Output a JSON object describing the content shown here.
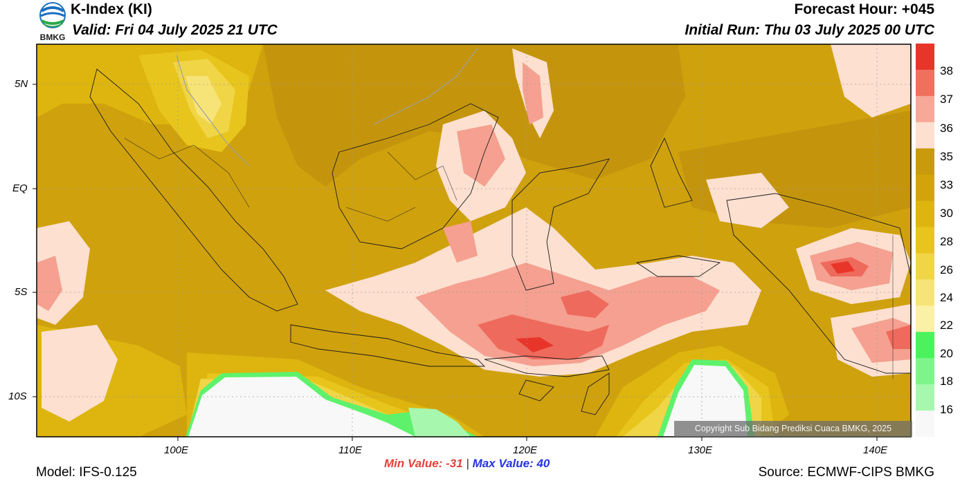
{
  "header": {
    "title": "K-Index (KI)",
    "valid": "Valid: Fri 04 July 2025 21 UTC",
    "forecast_hour": "Forecast Hour: +045",
    "initial_run": "Initial Run: Thu 03 July 2025 00 UTC"
  },
  "logo": {
    "text": "BMKG",
    "icon": "bmkg-logo-icon"
  },
  "axes": {
    "lat_labels": [
      "5N",
      "EQ",
      "5S",
      "10S"
    ],
    "lon_labels": [
      "100E",
      "110E",
      "120E",
      "130E",
      "140E"
    ]
  },
  "stats": {
    "min_value": "Min Value: -31",
    "separator": "|",
    "max_value": "Max Value:  40"
  },
  "footer": {
    "model": "Model: IFS-0.125",
    "source": "Source: ECMWF-CIPS BMKG",
    "copyright": "Copyright Sub Bidang Prediksi Cuaca BMKG, 2025"
  },
  "colorbar": {
    "labels": [
      "38",
      "37",
      "36",
      "35",
      "33",
      "30",
      "28",
      "26",
      "24",
      "22",
      "20",
      "18",
      "16"
    ],
    "colors": [
      "#e8352a",
      "#f0705e",
      "#f8a898",
      "#fde0d0",
      "#c99a0b",
      "#d2a40a",
      "#ddb50e",
      "#e8c51c",
      "#f0d547",
      "#f7e478",
      "#faf0a6",
      "#4cf25c",
      "#7ef58a",
      "#a8f7ae",
      "#f8f8f8"
    ]
  },
  "colors": {
    "base": "#cfa10d",
    "dark": "#c4950c",
    "light_yellow": "#f2dc6c",
    "pink": "#fde0d0",
    "salmon": "#f5a090",
    "red": "#ee6a5c",
    "green": "#5ef26c",
    "white": "#f8f8f8"
  }
}
